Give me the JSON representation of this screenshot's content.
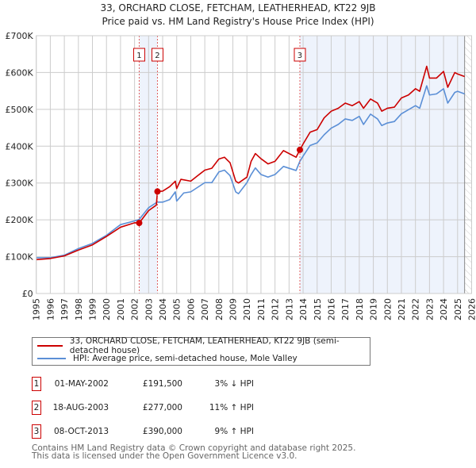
{
  "title": "33, ORCHARD CLOSE, FETCHAM, LEATHERHEAD, KT22 9JB",
  "subtitle": "Price paid vs. HM Land Registry's House Price Index (HPI)",
  "colors": {
    "property": "#cc0000",
    "hpi": "#5b8fd6",
    "band": "#eef3fc",
    "grid": "#cccccc"
  },
  "chart_data": {
    "type": "line",
    "title": "33, ORCHARD CLOSE, FETCHAM, LEATHERHEAD, KT22 9JB",
    "subtitle": "Price paid vs. HM Land Registry's House Price Index (HPI)",
    "xlim": [
      1995,
      2026
    ],
    "ylim": [
      0,
      700000
    ],
    "x_ticks": [
      "1995",
      "1996",
      "1997",
      "1998",
      "1999",
      "2000",
      "2001",
      "2002",
      "2003",
      "2004",
      "2005",
      "2006",
      "2007",
      "2008",
      "2009",
      "2010",
      "2011",
      "2012",
      "2013",
      "2014",
      "2015",
      "2016",
      "2017",
      "2018",
      "2019",
      "2020",
      "2021",
      "2022",
      "2023",
      "2024",
      "2025",
      "2026"
    ],
    "y_ticks": [
      {
        "v": 0,
        "l": "£0"
      },
      {
        "v": 100000,
        "l": "£100K"
      },
      {
        "v": 200000,
        "l": "£200K"
      },
      {
        "v": 300000,
        "l": "£300K"
      },
      {
        "v": 400000,
        "l": "£400K"
      },
      {
        "v": 500000,
        "l": "£500K"
      },
      {
        "v": 600000,
        "l": "£600K"
      },
      {
        "v": 700000,
        "l": "£700K"
      }
    ],
    "grid": true,
    "future_hatch_from": 2025.5,
    "series": [
      {
        "name": "33, ORCHARD CLOSE, FETCHAM, LEATHERHEAD, KT22 9JB (semi-detached house)",
        "x": [
          1995,
          1996,
          1997,
          1998,
          1999,
          2000,
          2001,
          2002,
          2002.33,
          2003,
          2003.55,
          2003.63,
          2004,
          2004.5,
          2004.9,
          2005,
          2005.3,
          2006,
          2006.5,
          2007,
          2007.5,
          2008,
          2008.4,
          2008.8,
          2009.2,
          2009.4,
          2010,
          2010.3,
          2010.6,
          2011,
          2011.5,
          2012,
          2012.6,
          2013.5,
          2013.77,
          2014,
          2014.5,
          2015,
          2015.5,
          2016,
          2016.5,
          2017,
          2017.5,
          2018,
          2018.3,
          2018.8,
          2019.3,
          2019.6,
          2020,
          2020.5,
          2021,
          2021.5,
          2022,
          2022.3,
          2022.8,
          2023,
          2023.5,
          2024,
          2024.3,
          2024.8,
          2025,
          2025.5
        ],
        "y": [
          92000,
          95000,
          102000,
          118000,
          132000,
          155000,
          180000,
          192000,
          191500,
          225000,
          240000,
          277000,
          278000,
          290000,
          305000,
          285000,
          310000,
          305000,
          320000,
          335000,
          340000,
          365000,
          370000,
          355000,
          305000,
          300000,
          316000,
          359000,
          380000,
          366000,
          352000,
          359000,
          388000,
          370000,
          390000,
          406000,
          438000,
          445000,
          477000,
          495000,
          503000,
          517000,
          510000,
          521000,
          503000,
          528000,
          517000,
          495000,
          503000,
          506000,
          531000,
          539000,
          556000,
          549000,
          617000,
          585000,
          585000,
          603000,
          560000,
          600000,
          596000,
          589000
        ]
      },
      {
        "name": "HPI: Average price, semi-detached house, Mole Valley",
        "x": [
          1995,
          1996,
          1997,
          1998,
          1999,
          2000,
          2001,
          2002,
          2002.33,
          2003,
          2003.6,
          2004,
          2004.5,
          2004.9,
          2005,
          2005.5,
          2006,
          2007,
          2007.5,
          2008,
          2008.4,
          2008.8,
          2009.2,
          2009.4,
          2010,
          2010.3,
          2010.6,
          2011,
          2011.5,
          2012,
          2012.6,
          2013.5,
          2013.77,
          2014,
          2014.5,
          2015,
          2015.5,
          2016,
          2016.5,
          2017,
          2017.5,
          2018,
          2018.3,
          2018.8,
          2019.3,
          2019.6,
          2020,
          2020.5,
          2021,
          2021.5,
          2022,
          2022.3,
          2022.8,
          2023,
          2023.5,
          2024,
          2024.3,
          2024.8,
          2025,
          2025.5
        ],
        "y": [
          97000,
          97000,
          104000,
          122000,
          136000,
          158000,
          187000,
          197000,
          201000,
          233000,
          248000,
          248000,
          255000,
          276000,
          251000,
          273000,
          276000,
          301000,
          301000,
          330000,
          335000,
          320000,
          276000,
          271000,
          301000,
          323000,
          341000,
          323000,
          316000,
          323000,
          345000,
          334000,
          359000,
          373000,
          402000,
          409000,
          431000,
          449000,
          459000,
          474000,
          470000,
          481000,
          459000,
          487000,
          474000,
          456000,
          463000,
          467000,
          488000,
          499000,
          510000,
          503000,
          564000,
          539000,
          542000,
          556000,
          517000,
          546000,
          549000,
          542000
        ]
      }
    ],
    "sales": [
      {
        "id": "1",
        "x": 2002.33,
        "y": 191500,
        "date": "01-MAY-2002",
        "price": "£191,500",
        "change": "3% ↓ HPI"
      },
      {
        "id": "2",
        "x": 2003.63,
        "y": 277000,
        "date": "18-AUG-2003",
        "price": "£277,000",
        "change": "11% ↑ HPI"
      },
      {
        "id": "3",
        "x": 2013.77,
        "y": 390000,
        "date": "08-OCT-2013",
        "price": "£390,000",
        "change": "9% ↑ HPI"
      }
    ],
    "legend_position": "below"
  },
  "footer": {
    "line1": "Contains HM Land Registry data © Crown copyright and database right 2025.",
    "line2": "This data is licensed under the Open Government Licence v3.0."
  }
}
